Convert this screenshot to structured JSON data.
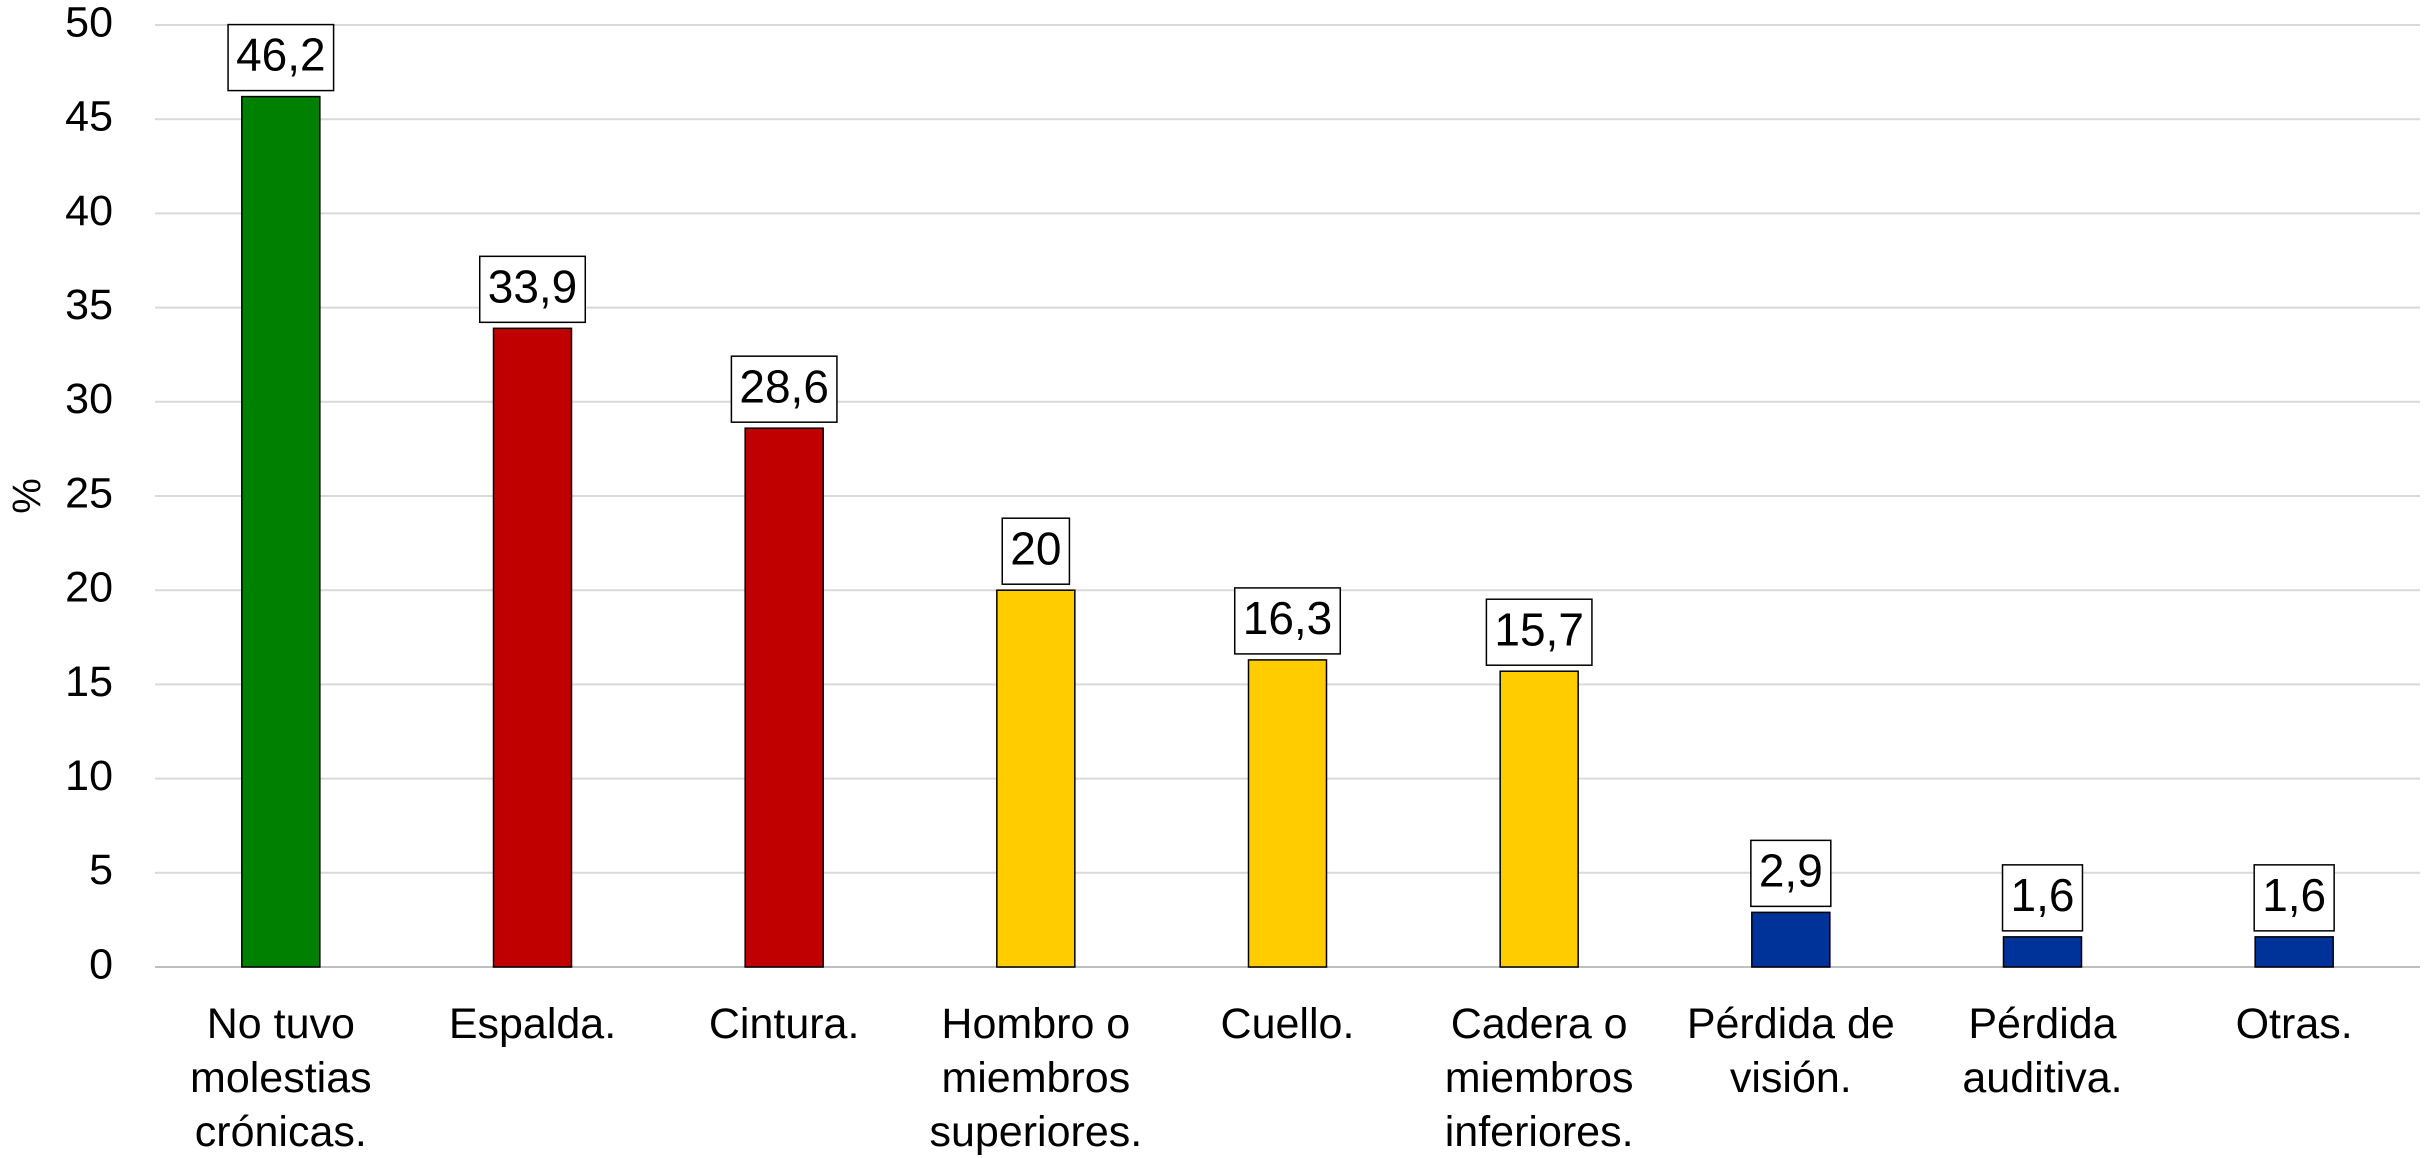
{
  "chart_data": {
    "type": "bar",
    "ylabel": "%",
    "categories": [
      "No tuvo molestias crónicas.",
      "Espalda.",
      "Cintura.",
      "Hombro o miembros superiores.",
      "Cuello.",
      "Cadera o miembros inferiores.",
      "Pérdida de visión.",
      "Pérdida auditiva.",
      "Otras."
    ],
    "values": [
      46.2,
      33.9,
      28.6,
      20,
      16.3,
      15.7,
      2.9,
      1.6,
      1.6
    ],
    "value_labels": [
      "46,2",
      "33,9",
      "28,6",
      "20",
      "16,3",
      "15,7",
      "2,9",
      "1,6",
      "1,6"
    ],
    "colors": [
      "#008000",
      "#c00000",
      "#c00000",
      "#ffcc00",
      "#ffcc00",
      "#ffcc00",
      "#003399",
      "#003399",
      "#003399"
    ],
    "ylim": [
      0,
      50
    ],
    "yticks": [
      0,
      5,
      10,
      15,
      20,
      25,
      30,
      35,
      40,
      45,
      50
    ],
    "grid": true
  }
}
